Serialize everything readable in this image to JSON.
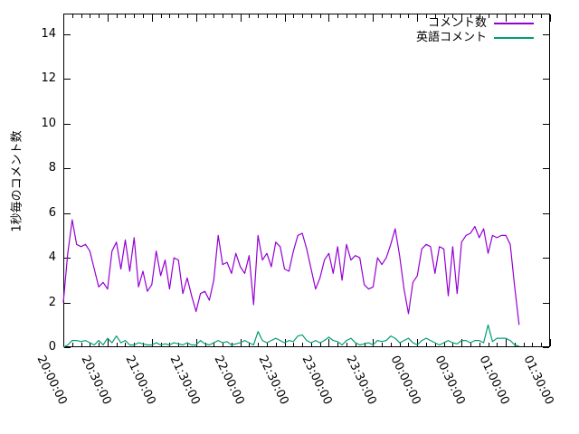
{
  "chart_data": {
    "type": "line",
    "title": "",
    "xlabel": "",
    "ylabel": "1秒毎のコメント数",
    "ylim": [
      0,
      15
    ],
    "ytick_values": [
      0,
      2,
      4,
      6,
      8,
      10,
      12,
      14
    ],
    "xtick_labels": [
      "20:00:00",
      "20:30:00",
      "21:00:00",
      "21:30:00",
      "22:00:00",
      "22:30:00",
      "23:00:00",
      "23:30:00",
      "00:00:00",
      "00:30:00",
      "01:00:00",
      "01:30:00"
    ],
    "x_range_minutes": [
      0,
      330
    ],
    "x_major_step_minutes": 30,
    "x_minor_step_minutes": 6,
    "sample_step_minutes": 3,
    "grid": "off",
    "legend_position": "top-right-inside",
    "background_color": "#ffffff",
    "axis_color": "#000000",
    "series": [
      {
        "name": "コメント数",
        "color": "#9400d3",
        "start_minute": 0,
        "values": [
          2.0,
          4.2,
          5.7,
          4.6,
          4.5,
          4.6,
          4.3,
          3.5,
          2.7,
          2.9,
          2.6,
          4.3,
          4.7,
          3.5,
          4.8,
          3.4,
          4.9,
          2.7,
          3.4,
          2.5,
          2.8,
          4.3,
          3.2,
          3.9,
          2.6,
          4.0,
          3.9,
          2.4,
          3.1,
          2.3,
          1.6,
          2.4,
          2.5,
          2.1,
          3.0,
          5.0,
          3.7,
          3.8,
          3.3,
          4.2,
          3.6,
          3.3,
          4.1,
          1.9,
          5.0,
          3.9,
          4.2,
          3.6,
          4.7,
          4.5,
          3.5,
          3.4,
          4.3,
          5.0,
          5.1,
          4.4,
          3.5,
          2.6,
          3.1,
          3.9,
          4.2,
          3.3,
          4.5,
          3.0,
          4.6,
          3.9,
          4.1,
          4.0,
          2.8,
          2.6,
          2.7,
          4.0,
          3.7,
          4.0,
          4.6,
          5.3,
          4.1,
          2.6,
          1.5,
          2.9,
          3.2,
          4.4,
          4.6,
          4.5,
          3.3,
          4.5,
          4.4,
          2.3,
          4.5,
          2.4,
          4.7,
          5.0,
          5.1,
          5.4,
          4.9,
          5.3,
          4.2,
          5.0,
          4.9,
          5.0,
          5.0,
          4.6,
          2.7,
          1.0
        ]
      },
      {
        "name": "英語コメント",
        "color": "#009e73",
        "start_minute": 0,
        "values": [
          0.0,
          0.1,
          0.3,
          0.3,
          0.25,
          0.3,
          0.2,
          0.1,
          0.3,
          0.1,
          0.4,
          0.2,
          0.5,
          0.2,
          0.3,
          0.1,
          0.1,
          0.2,
          0.15,
          0.1,
          0.1,
          0.2,
          0.1,
          0.15,
          0.1,
          0.2,
          0.15,
          0.1,
          0.2,
          0.1,
          0.1,
          0.3,
          0.15,
          0.1,
          0.2,
          0.3,
          0.2,
          0.25,
          0.1,
          0.15,
          0.2,
          0.3,
          0.2,
          0.1,
          0.7,
          0.3,
          0.2,
          0.3,
          0.4,
          0.3,
          0.2,
          0.3,
          0.25,
          0.5,
          0.55,
          0.3,
          0.2,
          0.3,
          0.2,
          0.3,
          0.45,
          0.3,
          0.25,
          0.1,
          0.3,
          0.4,
          0.2,
          0.1,
          0.15,
          0.2,
          0.1,
          0.3,
          0.25,
          0.3,
          0.5,
          0.4,
          0.2,
          0.3,
          0.4,
          0.2,
          0.1,
          0.3,
          0.4,
          0.3,
          0.2,
          0.1,
          0.2,
          0.3,
          0.2,
          0.15,
          0.3,
          0.3,
          0.2,
          0.3,
          0.3,
          0.2,
          1.0,
          0.25,
          0.4,
          0.4,
          0.4,
          0.3,
          0.1,
          0.05
        ]
      }
    ]
  }
}
